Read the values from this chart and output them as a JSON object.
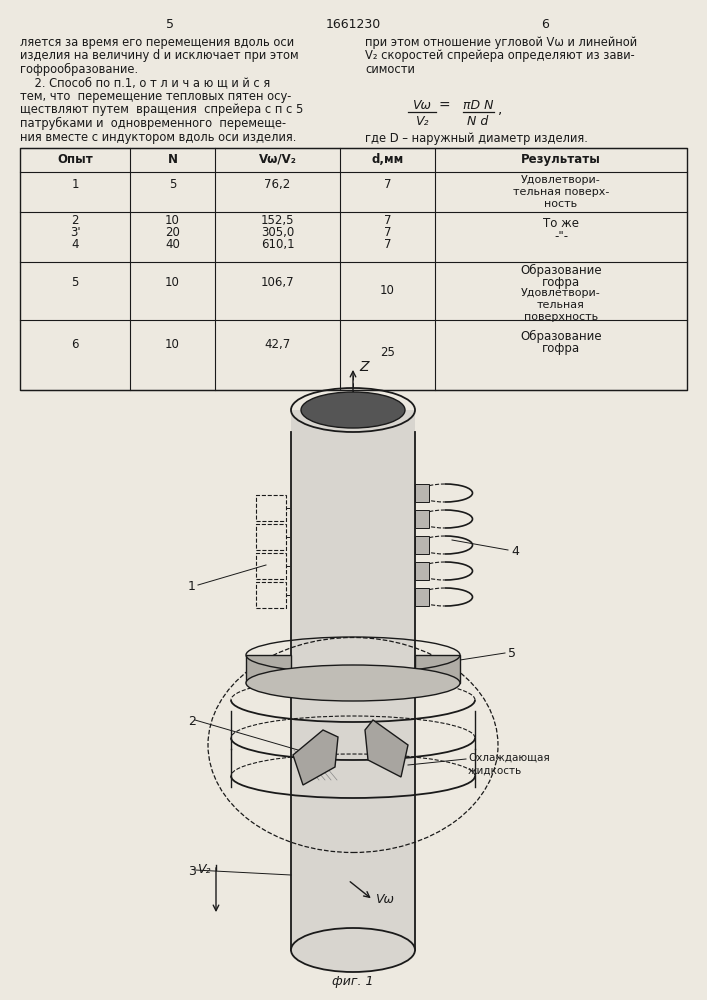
{
  "page_number_left": "5",
  "page_number_right": "6",
  "patent_number": "1661230",
  "bg_color": "#ede9e0",
  "left_text": [
    "ляется за время его перемещения вдоль оси",
    "изделия на величину d и исключает при этом",
    "гофрообразование.",
    "    2. Способ по п.1, о т л и ч а ю щ и й с я",
    "тем, что  перемещение тепловых пятен осу-",
    "ществляют путем  вращения  спрейера с п с 5",
    "патрубками и  одновременного  перемеще-",
    "ния вместе с индуктором вдоль оси изделия."
  ],
  "right_text": [
    "при этом отношение угловой Vω и линейной",
    "V₂ скоростей спрейера определяют из зави-",
    "симости"
  ],
  "formula_desc": "где D – наружный диаметр изделия.",
  "table_headers": [
    "Опыт",
    "N",
    "Vω/V₂",
    "d,мм",
    "Результаты"
  ],
  "fig_caption": "фиг. 1"
}
